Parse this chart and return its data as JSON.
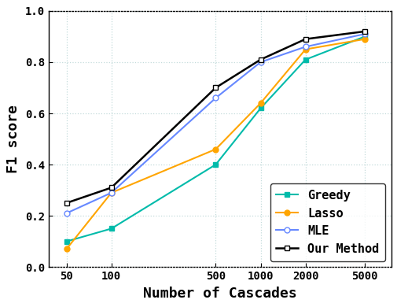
{
  "x": [
    50,
    100,
    500,
    1000,
    2000,
    5000
  ],
  "greedy": [
    0.1,
    0.15,
    0.4,
    0.62,
    0.81,
    0.9
  ],
  "lasso": [
    0.07,
    0.29,
    0.46,
    0.64,
    0.85,
    0.89
  ],
  "mle": [
    0.21,
    0.29,
    0.66,
    0.8,
    0.86,
    0.91
  ],
  "our": [
    0.25,
    0.31,
    0.7,
    0.81,
    0.89,
    0.92
  ],
  "greedy_color": "#00BBAA",
  "lasso_color": "#FFA500",
  "mle_color": "#6688FF",
  "our_color": "#000000",
  "xlabel": "Number of Cascades",
  "ylabel": "F1 score",
  "ylim": [
    0.0,
    1.0
  ],
  "legend_labels": [
    "Greedy",
    "Lasso",
    "MLE",
    "Our Method"
  ],
  "grid_color": "#AACCCC",
  "grid_alpha": 0.7
}
